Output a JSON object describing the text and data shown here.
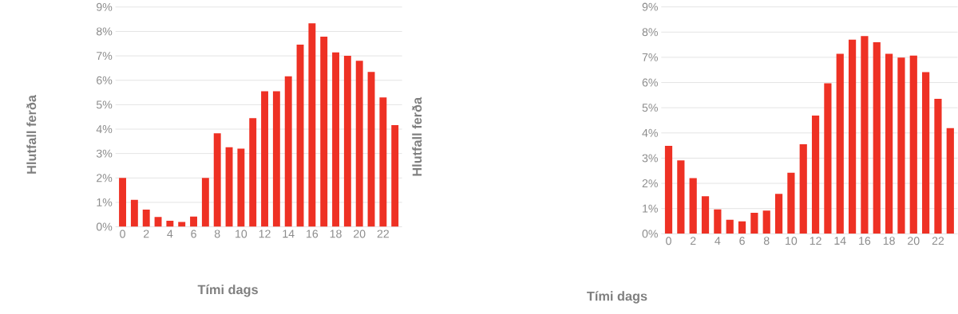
{
  "chart_data": [
    {
      "type": "bar",
      "xlabel": "Tími dags",
      "ylabel": "Hlutfall ferða",
      "color": "#ee3124",
      "grid": "y",
      "categories": [
        "0",
        null,
        "2",
        null,
        "4",
        null,
        "6",
        null,
        "8",
        null,
        "10",
        null,
        "12",
        null,
        "14",
        null,
        "16",
        null,
        "18",
        null,
        "20",
        null,
        "22",
        null
      ],
      "values": [
        2.0,
        1.1,
        0.7,
        0.4,
        0.25,
        0.2,
        0.42,
        2.0,
        3.83,
        3.26,
        3.2,
        4.45,
        5.55,
        5.55,
        6.16,
        7.46,
        8.33,
        7.79,
        7.14,
        7.0,
        6.8,
        6.34,
        5.3,
        4.16
      ],
      "ylim": [
        0,
        9
      ],
      "yticks": [
        {
          "value": 0,
          "label": "0%"
        },
        {
          "value": 1,
          "label": "1%"
        },
        {
          "value": 2,
          "label": "2%"
        },
        {
          "value": 3,
          "label": "3%"
        },
        {
          "value": 4,
          "label": "4%"
        },
        {
          "value": 5,
          "label": "5%"
        },
        {
          "value": 6,
          "label": "6%"
        },
        {
          "value": 7,
          "label": "7%"
        },
        {
          "value": 8,
          "label": "8%"
        },
        {
          "value": 9,
          "label": "9%"
        }
      ]
    },
    {
      "type": "bar",
      "xlabel": "Tími dags",
      "ylabel": "Hlutfall ferða",
      "color": "#ee3124",
      "grid": "y",
      "categories": [
        "0",
        null,
        "2",
        null,
        "4",
        null,
        "6",
        null,
        "8",
        null,
        "10",
        null,
        "12",
        null,
        "14",
        null,
        "16",
        null,
        "18",
        null,
        "20",
        null,
        "22",
        null
      ],
      "values": [
        3.49,
        2.91,
        2.21,
        1.49,
        0.97,
        0.56,
        0.49,
        0.83,
        0.92,
        1.58,
        2.42,
        3.55,
        4.69,
        5.97,
        7.14,
        7.7,
        7.84,
        7.6,
        7.14,
        6.99,
        7.07,
        6.41,
        5.35,
        4.19
      ],
      "ylim": [
        0,
        9
      ],
      "yticks": [
        {
          "value": 0,
          "label": "0%"
        },
        {
          "value": 1,
          "label": "1%"
        },
        {
          "value": 2,
          "label": "2%"
        },
        {
          "value": 3,
          "label": "3%"
        },
        {
          "value": 4,
          "label": "4%"
        },
        {
          "value": 5,
          "label": "5%"
        },
        {
          "value": 6,
          "label": "6%"
        },
        {
          "value": 7,
          "label": "7%"
        },
        {
          "value": 8,
          "label": "8%"
        },
        {
          "value": 9,
          "label": "9%"
        }
      ]
    }
  ]
}
